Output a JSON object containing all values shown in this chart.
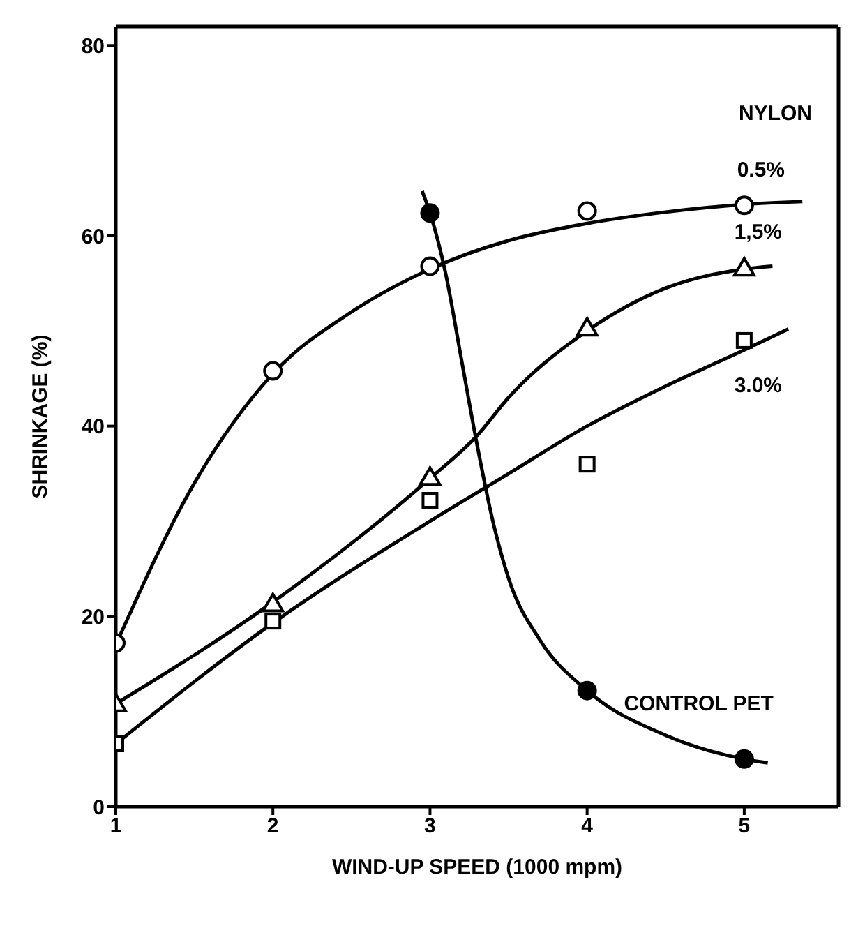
{
  "chart_data": {
    "type": "line",
    "xlabel": "WIND-UP SPEED (1000 mpm)",
    "ylabel": "SHRINKAGE (%)",
    "xlim": [
      1,
      5.6
    ],
    "xticks": [
      1,
      2,
      3,
      4,
      5
    ],
    "ylim": [
      0,
      82
    ],
    "yticks": [
      0,
      20,
      40,
      60,
      80
    ],
    "annotations": [
      "NYLON"
    ],
    "series": [
      {
        "name": "0.5%",
        "color": "#000000",
        "marker": "none",
        "x": [
          1,
          1.5,
          2,
          2.5,
          3,
          3.5,
          4,
          4.5,
          5,
          5.37
        ],
        "values": [
          17,
          34,
          45.5,
          52,
          56.5,
          59.5,
          61.3,
          62.5,
          63.3,
          63.6
        ]
      },
      {
        "name": "1,5%",
        "color": "#000000",
        "marker": "none",
        "x": [
          1,
          2,
          3,
          3.3,
          3.5,
          4,
          4.5,
          5,
          5.18
        ],
        "values": [
          10.8,
          21.5,
          34.5,
          39,
          43,
          50,
          54.5,
          56.5,
          56.8
        ]
      },
      {
        "name": "3.0%",
        "color": "#000000",
        "marker": "none",
        "x": [
          1,
          2,
          3,
          3.5,
          4,
          4.5,
          5,
          5.28
        ],
        "values": [
          6.6,
          19.3,
          30,
          35,
          40,
          44.2,
          48,
          50.2
        ]
      },
      {
        "name": "CONTROL PET",
        "color": "#000000",
        "marker": "none",
        "x": [
          2.95,
          3,
          3.1,
          3.2,
          3.3,
          3.4,
          3.5,
          3.7,
          4,
          4.5,
          5,
          5.15
        ],
        "values": [
          64.7,
          62.4,
          56,
          47,
          38,
          30,
          24,
          17.5,
          12.2,
          7.5,
          5,
          4.6
        ]
      },
      {
        "type": "scatter",
        "color": "#ffffff",
        "marker": "circle",
        "x": [
          1,
          2,
          3,
          4,
          5
        ],
        "values": [
          17.2,
          45.8,
          56.8,
          62.6,
          63.2
        ]
      },
      {
        "type": "scatter",
        "color": "#ffffff",
        "marker": "triangle",
        "x": [
          1,
          2,
          3,
          4,
          5
        ],
        "values": [
          10.8,
          21.3,
          34.6,
          50.3,
          56.6
        ]
      },
      {
        "type": "scatter",
        "color": "#ffffff",
        "marker": "square",
        "x": [
          1,
          2,
          3,
          4,
          5
        ],
        "values": [
          6.6,
          19.5,
          32.2,
          36,
          49
        ]
      },
      {
        "type": "scatter",
        "color": "#000000",
        "marker": "circle",
        "x": [
          3,
          4,
          5
        ],
        "values": [
          62.4,
          12.2,
          5
        ]
      }
    ]
  }
}
